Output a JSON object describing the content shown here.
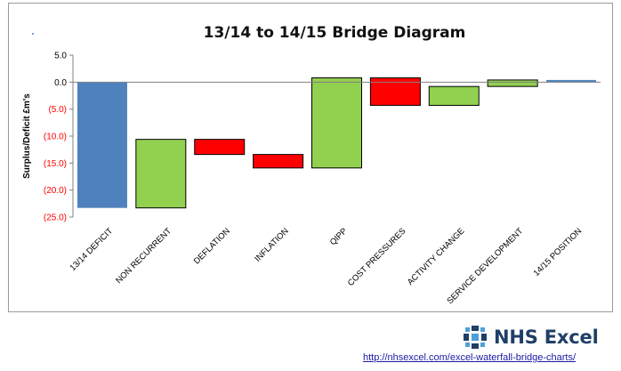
{
  "chart_data": {
    "type": "bar",
    "subtype": "waterfall",
    "title": "13/14 to 14/15 Bridge Diagram",
    "ylabel": "Surplus/Deficit £m's",
    "xlabel": "",
    "ylim": [
      -25,
      5
    ],
    "yticks": [
      5,
      0,
      -5,
      -10,
      -15,
      -20,
      -25
    ],
    "ytick_labels": [
      "5.0",
      "0.0",
      "(5.0)",
      "(10.0)",
      "(15.0)",
      "(20.0)",
      "(25.0)"
    ],
    "categories": [
      "13/14 DEFICIT",
      "NON RECURRENT",
      "DEFLATION",
      "INFLATION",
      "QIPP",
      "COST PRESSURES",
      "ACTIVITY CHANGE",
      "SERVICE DEVELOPMENT",
      "14/15 POSITION"
    ],
    "bars": [
      {
        "category": "13/14 DEFICIT",
        "start": 0,
        "end": -23.3,
        "kind": "total"
      },
      {
        "category": "NON RECURRENT",
        "start": -23.3,
        "end": -10.6,
        "kind": "increase"
      },
      {
        "category": "DEFLATION",
        "start": -10.6,
        "end": -13.4,
        "kind": "decrease"
      },
      {
        "category": "INFLATION",
        "start": -13.4,
        "end": -15.9,
        "kind": "decrease"
      },
      {
        "category": "QIPP",
        "start": -15.9,
        "end": 0.8,
        "kind": "increase"
      },
      {
        "category": "COST PRESSURES",
        "start": 0.8,
        "end": -4.3,
        "kind": "decrease"
      },
      {
        "category": "ACTIVITY CHANGE",
        "start": -4.3,
        "end": -0.8,
        "kind": "increase"
      },
      {
        "category": "SERVICE DEVELOPMENT",
        "start": -0.8,
        "end": 0.4,
        "kind": "increase"
      },
      {
        "category": "14/15 POSITION",
        "start": 0,
        "end": 0.4,
        "kind": "total"
      }
    ],
    "colors": {
      "total": "#4f81bd",
      "increase": "#92d050",
      "decrease": "#ff0000",
      "negative_tick": "#ff0000",
      "positive_tick": "#000000"
    },
    "grid": false,
    "legend": "none"
  },
  "brand": {
    "name": "NHS Excel",
    "icon": "nhs-excel-logo-icon",
    "color": "#1f3f66"
  },
  "footer": {
    "link": "http://nhsexcel.com/excel-waterfall-bridge-charts/"
  }
}
